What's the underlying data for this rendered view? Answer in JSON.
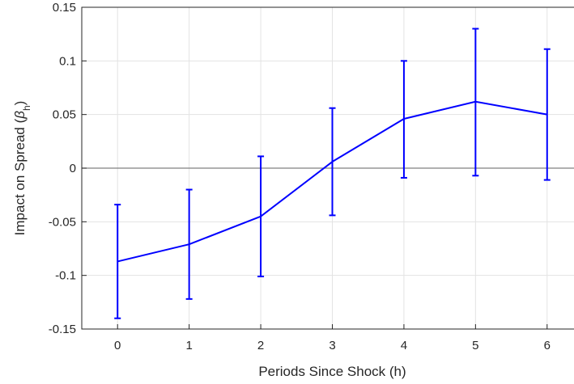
{
  "chart_data": {
    "type": "line",
    "title": "",
    "xlabel": "Periods Since Shock (h)",
    "ylabel": {
      "text": "Impact on Spread (",
      "symbol": "β",
      "subscript": "h",
      "close": ")"
    },
    "x": [
      0,
      1,
      2,
      3,
      4,
      5,
      6
    ],
    "x_ticks": [
      "0",
      "1",
      "2",
      "3",
      "4",
      "5",
      "6"
    ],
    "xlim": [
      -0.5,
      6.5
    ],
    "ylim": [
      -0.15,
      0.15
    ],
    "y_ticks": [
      "-0.15",
      "-0.1",
      "-0.05",
      "0",
      "0.05",
      "0.1",
      "0.15"
    ],
    "grid": true,
    "zero_line": true,
    "series": [
      {
        "values": [
          -0.087,
          -0.071,
          -0.045,
          0.006,
          0.046,
          0.062,
          0.05
        ],
        "lower": [
          -0.14,
          -0.122,
          -0.101,
          -0.044,
          -0.009,
          -0.007,
          -0.011
        ],
        "upper": [
          -0.034,
          -0.02,
          0.011,
          0.056,
          0.1,
          0.13,
          0.111
        ],
        "color": "#0000ff"
      }
    ]
  }
}
